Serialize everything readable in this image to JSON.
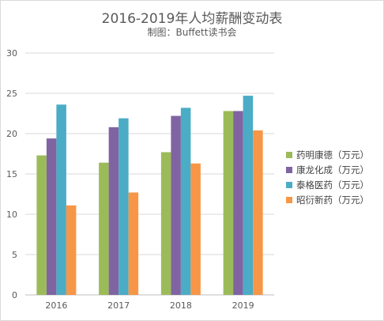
{
  "title": "2016-2019年人均薪酬变动表",
  "subtitle": "制图：Buffett读书会",
  "chart_data": {
    "type": "bar",
    "categories": [
      "2016",
      "2017",
      "2018",
      "2019"
    ],
    "ylim": [
      0,
      30
    ],
    "yticks": [
      0,
      5,
      10,
      15,
      20,
      25,
      30
    ],
    "grid": true,
    "legend_position": "right",
    "series": [
      {
        "name": "药明康德（万元）",
        "color": "#9bbb59",
        "values": [
          17.3,
          16.4,
          17.7,
          22.8
        ]
      },
      {
        "name": "康龙化成（万元）",
        "color": "#8064a2",
        "values": [
          19.4,
          20.8,
          22.2,
          22.8
        ]
      },
      {
        "name": "泰格医药（万元）",
        "color": "#4bacc6",
        "values": [
          23.6,
          21.9,
          23.2,
          24.7
        ]
      },
      {
        "name": "昭衍新药（万元）",
        "color": "#f79646",
        "values": [
          11.1,
          12.7,
          16.3,
          20.4
        ]
      }
    ]
  }
}
